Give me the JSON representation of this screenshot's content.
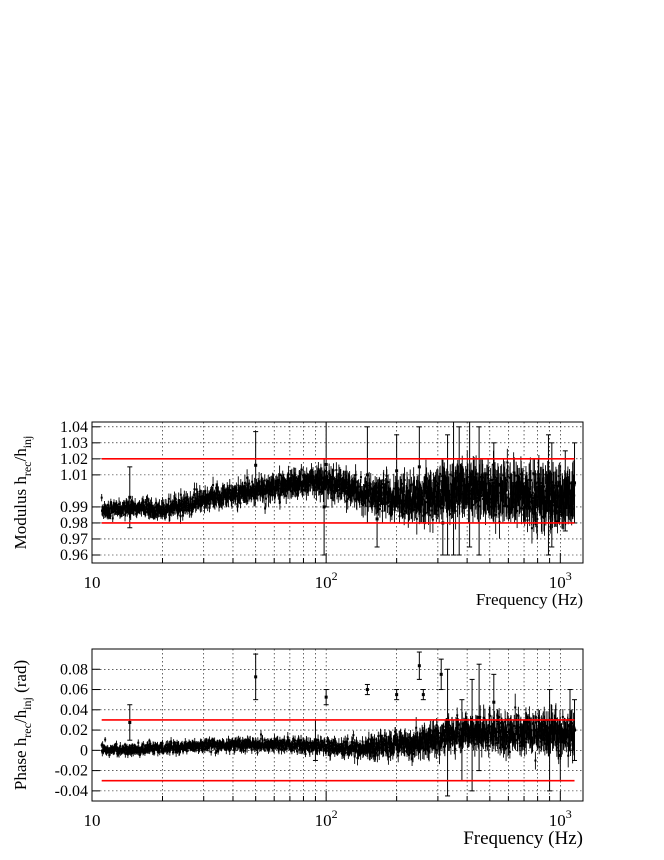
{
  "chart_data": [
    {
      "type": "scatter",
      "panel": "top",
      "ylabel": {
        "main": "Modulus h",
        "sub1": "rec",
        "mid": "/h",
        "sub2": "inj",
        "tail": ""
      },
      "xlabel": "Frequency (Hz)",
      "xscale": "log",
      "xlim": [
        10,
        1250
      ],
      "ylim": [
        0.955,
        1.043
      ],
      "yticks": [
        {
          "v": 0.96,
          "label": "0.96"
        },
        {
          "v": 0.97,
          "label": "0.97"
        },
        {
          "v": 0.98,
          "label": "0.98"
        },
        {
          "v": 0.99,
          "label": "0.99"
        },
        {
          "v": 1.01,
          "label": "1.01"
        },
        {
          "v": 1.02,
          "label": "1.02"
        },
        {
          "v": 1.03,
          "label": "1.03"
        },
        {
          "v": 1.04,
          "label": "1.04"
        }
      ],
      "xticks": [
        {
          "v": 10,
          "base": "10",
          "exp": ""
        },
        {
          "v": 100,
          "base": "10",
          "exp": "2"
        },
        {
          "v": 1000,
          "base": "10",
          "exp": "3"
        }
      ],
      "grid": true,
      "reference_lines": [
        {
          "y": 1.02,
          "x_from": 11,
          "x_to": 1150,
          "color": "#ff0000"
        },
        {
          "y": 0.98,
          "x_from": 11,
          "x_to": 1150,
          "color": "#ff0000"
        }
      ],
      "trend": [
        {
          "x": 11,
          "y": 0.988
        },
        {
          "x": 15,
          "y": 0.989
        },
        {
          "x": 20,
          "y": 0.988
        },
        {
          "x": 25,
          "y": 0.991
        },
        {
          "x": 30,
          "y": 0.995
        },
        {
          "x": 40,
          "y": 0.998
        },
        {
          "x": 50,
          "y": 1.0
        },
        {
          "x": 60,
          "y": 1.003
        },
        {
          "x": 80,
          "y": 1.005
        },
        {
          "x": 100,
          "y": 1.006
        },
        {
          "x": 130,
          "y": 1.002
        },
        {
          "x": 170,
          "y": 0.997
        },
        {
          "x": 220,
          "y": 0.994
        },
        {
          "x": 300,
          "y": 0.998
        },
        {
          "x": 400,
          "y": 1.001
        },
        {
          "x": 600,
          "y": 0.998
        },
        {
          "x": 900,
          "y": 0.995
        },
        {
          "x": 1150,
          "y": 0.997
        }
      ],
      "scatter_sd": [
        {
          "x": 11,
          "sd": 0.002
        },
        {
          "x": 50,
          "sd": 0.003
        },
        {
          "x": 150,
          "sd": 0.004
        },
        {
          "x": 300,
          "sd": 0.006
        },
        {
          "x": 1150,
          "sd": 0.007
        }
      ],
      "outliers": [
        {
          "x": 14.5,
          "lo": 0.977,
          "hi": 1.015
        },
        {
          "x": 50,
          "lo": 0.995,
          "hi": 1.037
        },
        {
          "x": 98,
          "lo": 0.96,
          "hi": 1.02
        },
        {
          "x": 100,
          "lo": 0.99,
          "hi": 1.043
        },
        {
          "x": 150,
          "lo": 0.98,
          "hi": 1.04
        },
        {
          "x": 165,
          "lo": 0.965,
          "hi": 1.0
        },
        {
          "x": 200,
          "lo": 0.99,
          "hi": 1.035
        },
        {
          "x": 250,
          "lo": 0.99,
          "hi": 1.04
        },
        {
          "x": 315,
          "lo": 0.96,
          "hi": 1.0
        },
        {
          "x": 330,
          "lo": 0.96,
          "hi": 1.035
        },
        {
          "x": 350,
          "lo": 0.96,
          "hi": 1.043
        },
        {
          "x": 370,
          "lo": 0.96,
          "hi": 1.04
        },
        {
          "x": 410,
          "lo": 0.965,
          "hi": 1.043
        },
        {
          "x": 450,
          "lo": 0.96,
          "hi": 1.04
        },
        {
          "x": 520,
          "lo": 0.98,
          "hi": 1.03
        },
        {
          "x": 890,
          "lo": 0.96,
          "hi": 1.035
        },
        {
          "x": 920,
          "lo": 0.965,
          "hi": 1.03
        },
        {
          "x": 1050,
          "lo": 0.975,
          "hi": 1.025
        },
        {
          "x": 1150,
          "lo": 0.98,
          "hi": 1.03
        }
      ]
    },
    {
      "type": "scatter",
      "panel": "bottom",
      "ylabel": {
        "main": "Phase h",
        "sub1": "rec",
        "mid": "/h",
        "sub2": "inj",
        "tail": " (rad)"
      },
      "xlabel": "Frequency (Hz)",
      "xscale": "log",
      "xlim": [
        10,
        1250
      ],
      "ylim": [
        -0.05,
        0.1
      ],
      "yticks": [
        {
          "v": -0.04,
          "label": "-0.04"
        },
        {
          "v": -0.02,
          "label": "-0.02"
        },
        {
          "v": 0,
          "label": "0"
        },
        {
          "v": 0.02,
          "label": "0.02"
        },
        {
          "v": 0.04,
          "label": "0.04"
        },
        {
          "v": 0.06,
          "label": "0.06"
        },
        {
          "v": 0.08,
          "label": "0.08"
        }
      ],
      "xticks": [
        {
          "v": 10,
          "base": "10",
          "exp": ""
        },
        {
          "v": 100,
          "base": "10",
          "exp": "2"
        },
        {
          "v": 1000,
          "base": "10",
          "exp": "3"
        }
      ],
      "grid": true,
      "reference_lines": [
        {
          "y": 0.03,
          "x_from": 11,
          "x_to": 1150,
          "color": "#ff0000"
        },
        {
          "y": -0.03,
          "x_from": 11,
          "x_to": 1150,
          "color": "#ff0000"
        }
      ],
      "trend": [
        {
          "x": 11,
          "y": 0.0
        },
        {
          "x": 15,
          "y": 0.001
        },
        {
          "x": 20,
          "y": 0.002
        },
        {
          "x": 30,
          "y": 0.005
        },
        {
          "x": 50,
          "y": 0.006
        },
        {
          "x": 80,
          "y": 0.005
        },
        {
          "x": 120,
          "y": 0.002
        },
        {
          "x": 160,
          "y": 0.004
        },
        {
          "x": 250,
          "y": 0.007
        },
        {
          "x": 300,
          "y": 0.012
        },
        {
          "x": 400,
          "y": 0.018
        },
        {
          "x": 600,
          "y": 0.017
        },
        {
          "x": 900,
          "y": 0.016
        },
        {
          "x": 1150,
          "y": 0.015
        }
      ],
      "scatter_sd": [
        {
          "x": 11,
          "sd": 0.002
        },
        {
          "x": 100,
          "sd": 0.003
        },
        {
          "x": 300,
          "sd": 0.006
        },
        {
          "x": 1150,
          "sd": 0.008
        }
      ],
      "outliers": [
        {
          "x": 14.5,
          "lo": 0.01,
          "hi": 0.045
        },
        {
          "x": 50,
          "lo": 0.05,
          "hi": 0.095
        },
        {
          "x": 90,
          "lo": -0.01,
          "hi": 0.03
        },
        {
          "x": 100,
          "lo": 0.045,
          "hi": 0.06
        },
        {
          "x": 150,
          "lo": 0.055,
          "hi": 0.065
        },
        {
          "x": 200,
          "lo": 0.05,
          "hi": 0.06
        },
        {
          "x": 250,
          "lo": 0.07,
          "hi": 0.097
        },
        {
          "x": 260,
          "lo": 0.05,
          "hi": 0.06
        },
        {
          "x": 310,
          "lo": 0.06,
          "hi": 0.09
        },
        {
          "x": 330,
          "lo": -0.045,
          "hi": 0.08
        },
        {
          "x": 380,
          "lo": -0.03,
          "hi": 0.05
        },
        {
          "x": 420,
          "lo": -0.04,
          "hi": 0.07
        },
        {
          "x": 450,
          "lo": -0.02,
          "hi": 0.085
        },
        {
          "x": 520,
          "lo": 0.02,
          "hi": 0.075
        },
        {
          "x": 900,
          "lo": -0.04,
          "hi": 0.06
        },
        {
          "x": 1000,
          "lo": -0.03,
          "hi": 0.02
        },
        {
          "x": 1100,
          "lo": 0.0,
          "hi": 0.06
        },
        {
          "x": 1150,
          "lo": -0.01,
          "hi": 0.05
        }
      ]
    }
  ]
}
